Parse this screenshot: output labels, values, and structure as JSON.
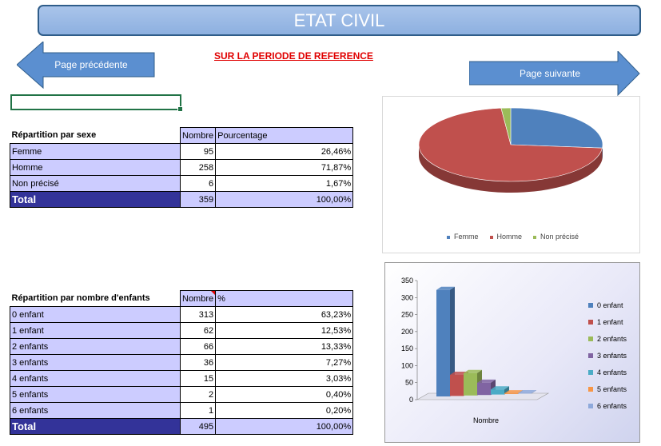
{
  "header": {
    "title": "ETAT CIVIL",
    "subtitle": "SUR LA PERIODE DE REFERENCE"
  },
  "nav": {
    "prev_label": "Page précédente",
    "next_label": "Page suivante"
  },
  "sex_table": {
    "title": "Répartition par sexe",
    "col_count": "Nombre",
    "col_pct": "Pourcentage",
    "rows": [
      {
        "label": "Femme",
        "count": "95",
        "pct": "26,46%"
      },
      {
        "label": "Homme",
        "count": "258",
        "pct": "71,87%"
      },
      {
        "label": "Non précisé",
        "count": "6",
        "pct": "1,67%"
      }
    ],
    "total": {
      "label": "Total",
      "count": "359",
      "pct": "100,00%"
    }
  },
  "children_table": {
    "title": "Répartition par nombre d'enfants",
    "col_count": "Nombre",
    "col_pct": "%",
    "rows": [
      {
        "label": "0 enfant",
        "count": "313",
        "pct": "63,23%"
      },
      {
        "label": "1 enfant",
        "count": "62",
        "pct": "12,53%"
      },
      {
        "label": "2 enfants",
        "count": "66",
        "pct": "13,33%"
      },
      {
        "label": "3 enfants",
        "count": "36",
        "pct": "7,27%"
      },
      {
        "label": "4 enfants",
        "count": "15",
        "pct": "3,03%"
      },
      {
        "label": "5 enfants",
        "count": "2",
        "pct": "0,40%"
      },
      {
        "label": "6 enfants",
        "count": "1",
        "pct": "0,20%"
      }
    ],
    "total": {
      "label": "Total",
      "count": "495",
      "pct": "100,00%"
    }
  },
  "chart_data": [
    {
      "type": "pie",
      "categories": [
        "Femme",
        "Homme",
        "Non précisé"
      ],
      "values": [
        95,
        258,
        6
      ],
      "colors": [
        "#4f81bd",
        "#c0504d",
        "#9bbb59"
      ],
      "legend": "bottom"
    },
    {
      "type": "bar",
      "categories": [
        "Nombre"
      ],
      "series": [
        {
          "name": "0 enfant",
          "values": [
            313
          ]
        },
        {
          "name": "1 enfant",
          "values": [
            62
          ]
        },
        {
          "name": "2 enfants",
          "values": [
            66
          ]
        },
        {
          "name": "3 enfants",
          "values": [
            36
          ]
        },
        {
          "name": "4 enfants",
          "values": [
            15
          ]
        },
        {
          "name": "5 enfants",
          "values": [
            2
          ]
        },
        {
          "name": "6 enfants",
          "values": [
            1
          ]
        }
      ],
      "colors": [
        "#4f81bd",
        "#c0504d",
        "#9bbb59",
        "#8064a2",
        "#4bacc6",
        "#f79646",
        "#8ea9db"
      ],
      "ylim": [
        0,
        350
      ],
      "yticks": [
        "0",
        "50",
        "100",
        "150",
        "200",
        "250",
        "300",
        "350"
      ],
      "xlabel": "Nombre",
      "legend": "right"
    }
  ]
}
